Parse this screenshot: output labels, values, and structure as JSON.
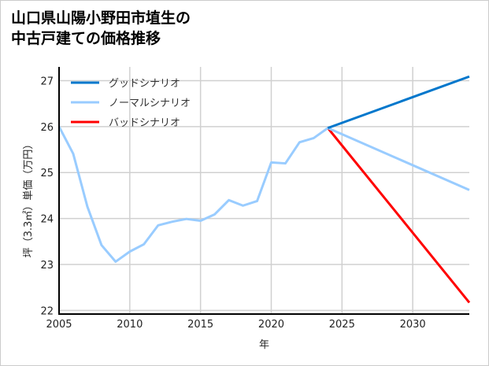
{
  "chart_data": {
    "type": "line",
    "title": "山口県山陽小野田市埴生の\n中古戸建ての価格推移",
    "xlabel": "年",
    "ylabel": "坪（3.3㎡）単価（万円）",
    "xlim": [
      2005,
      2034
    ],
    "ylim": [
      21.92,
      27.3
    ],
    "xticks": [
      2005,
      2010,
      2015,
      2020,
      2025,
      2030
    ],
    "yticks": [
      22,
      23,
      24,
      25,
      26,
      27
    ],
    "grid": true,
    "legend_position": "top-left",
    "series": [
      {
        "name": "グッドシナリオ",
        "color": "#0077cc",
        "x": [
          2024,
          2034
        ],
        "y": [
          25.97,
          27.09
        ]
      },
      {
        "name": "ノーマルシナリオ",
        "color": "#99ccff",
        "x": [
          2005,
          2006,
          2007,
          2008,
          2009,
          2010,
          2011,
          2012,
          2013,
          2014,
          2015,
          2016,
          2017,
          2018,
          2019,
          2020,
          2021,
          2022,
          2023,
          2024,
          2034
        ],
        "y": [
          26.0,
          25.41,
          24.26,
          23.42,
          23.06,
          23.28,
          23.44,
          23.85,
          23.93,
          23.99,
          23.95,
          24.09,
          24.4,
          24.28,
          24.38,
          25.22,
          25.2,
          25.66,
          25.75,
          25.97,
          24.62
        ]
      },
      {
        "name": "バッドシナリオ",
        "color": "#ff0000",
        "x": [
          2024,
          2034
        ],
        "y": [
          25.97,
          22.17
        ]
      }
    ]
  }
}
